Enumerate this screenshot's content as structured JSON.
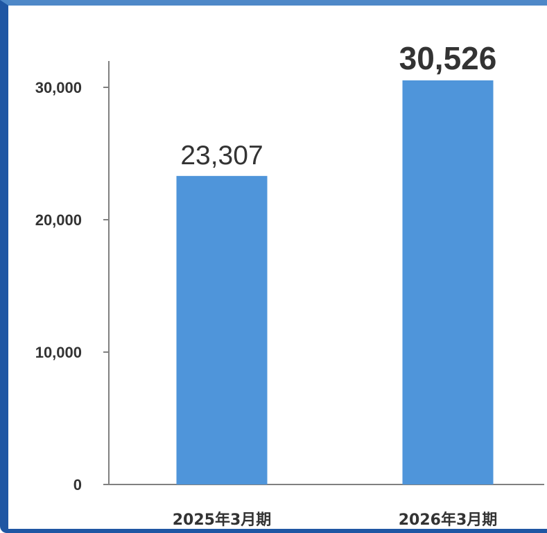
{
  "chart_data": {
    "type": "bar",
    "categories": [
      "2025年3月期",
      "2026年3月期"
    ],
    "values": [
      23307,
      30526
    ],
    "value_labels": [
      "23,307",
      "30,526"
    ],
    "highlight_index": 1,
    "ylim": [
      0,
      33000
    ],
    "yticks": [
      0,
      10000,
      20000,
      30000
    ],
    "ytick_labels": [
      "0",
      "10,000",
      "20,000",
      "30,000"
    ],
    "title": "",
    "xlabel": "",
    "ylabel": "",
    "grid": false,
    "colors": {
      "bar": "#4f95da",
      "axis": "#808080",
      "text": "#333333",
      "frame_top": "#4e88c8",
      "frame_side": "#1f56a3"
    }
  }
}
